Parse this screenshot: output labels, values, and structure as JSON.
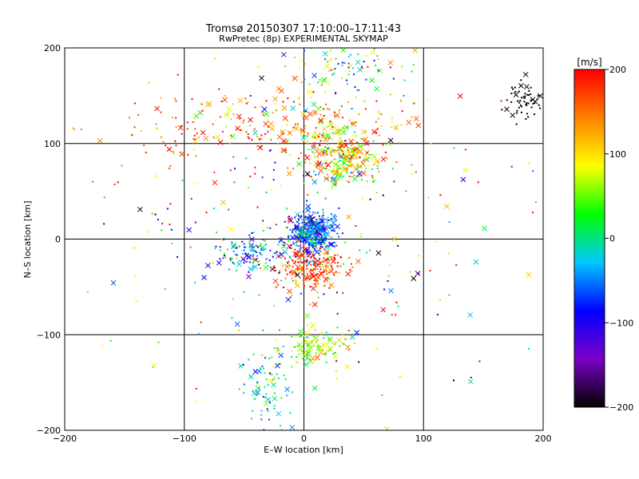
{
  "chart_data": {
    "type": "scatter",
    "title": "Tromsø 20150307 17:10:00–17:11:43",
    "subtitle": "RwPretec (8p) EXPERIMENTAL SKYMAP",
    "xlabel": "E–W location [km]",
    "ylabel": "N–S location [km]",
    "xlim": [
      -200,
      200
    ],
    "ylim": [
      -200,
      200
    ],
    "xticks": [
      "−200",
      "−100",
      "0",
      "100",
      "200"
    ],
    "yticks": [
      "−200",
      "−100",
      "0",
      "100",
      "200"
    ],
    "grid": true,
    "colorbar": {
      "label": "[m/s]",
      "range": [
        -200,
        200
      ],
      "ticks": [
        "200",
        "100",
        "0",
        "−100",
        "−200"
      ],
      "colormap": [
        "#000000",
        "#7a00c8",
        "#0000ff",
        "#00c8ff",
        "#00ff00",
        "#ffff00",
        "#ff8000",
        "#ff0000"
      ]
    },
    "marker_types": [
      "dot",
      "cross"
    ],
    "clusters": [
      {
        "cx": 5,
        "cy": 5,
        "sx": 10,
        "sy": 12,
        "n": 420,
        "v": -60,
        "vs": 45
      },
      {
        "cx": 5,
        "cy": -30,
        "sx": 14,
        "sy": 12,
        "n": 220,
        "v": 180,
        "vs": 40
      },
      {
        "cx": 30,
        "cy": 85,
        "sx": 16,
        "sy": 15,
        "n": 300,
        "v": 90,
        "vs": 70
      },
      {
        "cx": 0,
        "cy": 120,
        "sx": 55,
        "sy": 18,
        "n": 230,
        "v": 140,
        "vs": 60
      },
      {
        "cx": -45,
        "cy": -15,
        "sx": 12,
        "sy": 8,
        "n": 110,
        "v": -60,
        "vs": 70
      },
      {
        "cx": 8,
        "cy": -110,
        "sx": 14,
        "sy": 10,
        "n": 120,
        "v": 60,
        "vs": 40
      },
      {
        "cx": -30,
        "cy": -155,
        "sx": 12,
        "sy": 25,
        "n": 80,
        "v": -20,
        "vs": 40
      },
      {
        "cx": 40,
        "cy": 180,
        "sx": 25,
        "sy": 15,
        "n": 90,
        "v": 20,
        "vs": 90
      },
      {
        "cx": 185,
        "cy": 145,
        "sx": 8,
        "sy": 12,
        "n": 60,
        "v": -200,
        "vs": 3
      },
      {
        "cx": 0,
        "cy": 0,
        "sx": 90,
        "sy": 90,
        "n": 260,
        "v": 40,
        "vs": 140
      },
      {
        "cx": -100,
        "cy": 110,
        "sx": 40,
        "sy": 25,
        "n": 60,
        "v": 180,
        "vs": 40
      }
    ]
  }
}
